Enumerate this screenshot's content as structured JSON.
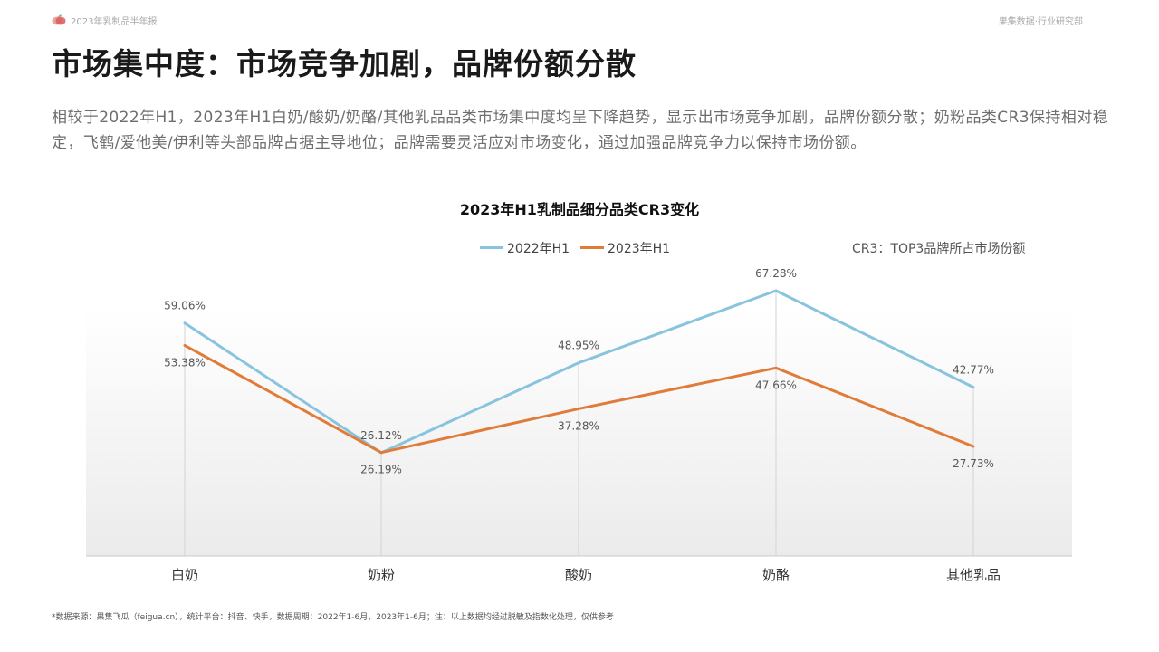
{
  "header": {
    "report_name": "2023年乳制品半年报",
    "org": "果集数据·行业研究部"
  },
  "page_title": "市场集中度：市场竞争加剧，品牌份额分散",
  "intro_text": "相较于2022年H1，2023年H1白奶/酸奶/奶酪/其他乳品品类市场集中度均呈下降趋势，显示出市场竞争加剧，品牌份额分散；奶粉品类CR3保持相对稳定，飞鹤/爱他美/伊利等头部品牌占据主导地位；品牌需要灵活应对市场变化，通过加强品牌竞争力以保持市场份额。",
  "chart_data": {
    "type": "line",
    "title": "2023年H1乳制品细分品类CR3变化",
    "categories": [
      "白奶",
      "奶粉",
      "酸奶",
      "奶酪",
      "其他乳品"
    ],
    "series": [
      {
        "name": "2022年H1",
        "color": "#89c4de",
        "values": [
          59.06,
          26.12,
          48.95,
          67.28,
          42.77
        ],
        "labels": [
          "59.06%",
          "26.12%",
          "48.95%",
          "67.28%",
          "42.77%"
        ]
      },
      {
        "name": "2023年H1",
        "color": "#e07b39",
        "values": [
          53.38,
          26.19,
          37.28,
          47.66,
          27.73
        ],
        "labels": [
          "53.38%",
          "26.19%",
          "37.28%",
          "47.66%",
          "27.73%"
        ]
      }
    ],
    "note": "CR3：TOP3品牌所占市场份额",
    "xlabel": "",
    "ylabel": "",
    "grid": false,
    "legend_position": "top"
  },
  "footnote": "*数据来源：果集飞瓜（feigua.cn），统计平台：抖音、快手，数据周期：2022年1-6月，2023年1-6月；注：以上数据均经过脱敏及指数化处理，仅供参考"
}
